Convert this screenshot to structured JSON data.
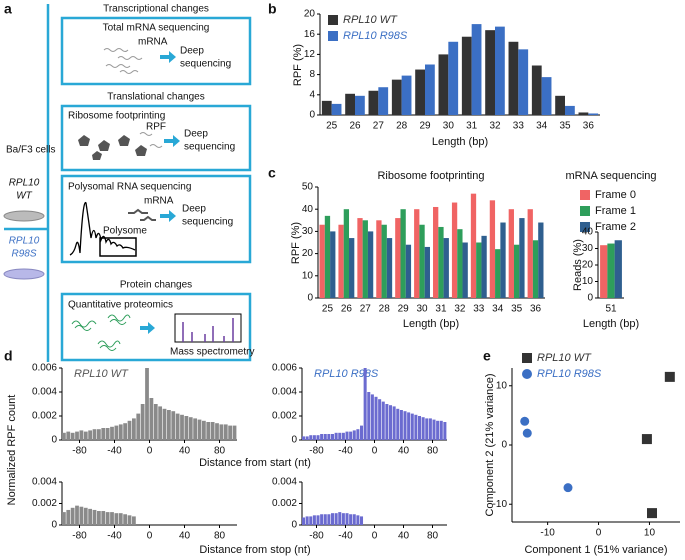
{
  "panel_labels": [
    "a",
    "b",
    "c",
    "d",
    "e"
  ],
  "panel_a": {
    "cells": "Ba/F3 cells",
    "wt": [
      "RPL10",
      "WT"
    ],
    "mut": [
      "RPL10",
      "R98S"
    ],
    "sections": [
      {
        "heading": "Transcriptional changes",
        "box": "Total mRNA sequencing",
        "labels": [
          "mRNA",
          "Deep",
          "sequencing"
        ]
      },
      {
        "heading": "Translational changes",
        "box": "Ribosome footprinting",
        "labels": [
          "RPF",
          "Deep",
          "sequencing"
        ]
      },
      {
        "box": "Polysomal RNA sequencing",
        "labels": [
          "mRNA",
          "Polysome",
          "Deep",
          "sequencing"
        ]
      },
      {
        "heading": "Protein changes",
        "box": "Quantitative proteomics",
        "labels": [
          "Mass spectrometry"
        ]
      }
    ]
  },
  "chart_data": [
    {
      "type": "bar",
      "xlabel": "Length (bp)",
      "ylabel": "RPF (%)",
      "categories": [
        "25",
        "26",
        "27",
        "28",
        "29",
        "30",
        "31",
        "32",
        "33",
        "34",
        "35",
        "36"
      ],
      "series": [
        {
          "name": "RPL10 WT",
          "color": "#333333",
          "values": [
            2.8,
            4.2,
            4.8,
            7,
            9,
            12,
            15.5,
            16.8,
            14.5,
            9.8,
            3.8,
            0.5
          ]
        },
        {
          "name": "RPL10 R98S",
          "color": "#3b6fc4",
          "values": [
            2.2,
            3.8,
            5.5,
            7.8,
            10,
            14.5,
            18,
            17.5,
            13,
            7.5,
            1.8,
            0.3
          ]
        }
      ],
      "ylim": [
        0,
        20
      ],
      "yticks": [
        0,
        4,
        8,
        12,
        16,
        20
      ],
      "legend": "upper left"
    },
    {
      "type": "bar",
      "title": "Ribosome footprinting",
      "xlabel": "Length (bp)",
      "ylabel": "RPF (%)",
      "categories": [
        "25",
        "26",
        "27",
        "28",
        "29",
        "30",
        "31",
        "32",
        "33",
        "34",
        "35",
        "36"
      ],
      "series": [
        {
          "name": "Frame 0",
          "color": "#f06464",
          "values": [
            33,
            33,
            36,
            35,
            36,
            40,
            41,
            43,
            47,
            44,
            40,
            40
          ]
        },
        {
          "name": "Frame 1",
          "color": "#2e9e5b",
          "values": [
            37,
            40,
            35,
            33,
            40,
            33,
            32,
            31,
            25,
            22,
            24,
            26
          ]
        },
        {
          "name": "Frame 2",
          "color": "#2f5f8f",
          "values": [
            30,
            27,
            30,
            27,
            24,
            23,
            27,
            25,
            28,
            34,
            36,
            34
          ]
        }
      ],
      "ylim": [
        0,
        50
      ],
      "yticks": [
        0,
        10,
        20,
        30,
        40,
        50
      ],
      "legend": "right"
    },
    {
      "type": "bar",
      "title": "mRNA sequencing",
      "xlabel": "Length (bp)",
      "ylabel": "Reads (%)",
      "categories": [
        "51"
      ],
      "series": [
        {
          "color": "#f06464",
          "values": [
            32
          ]
        },
        {
          "color": "#2e9e5b",
          "values": [
            33
          ]
        },
        {
          "color": "#2f5f8f",
          "values": [
            35
          ]
        }
      ],
      "ylim": [
        0,
        40
      ],
      "yticks": [
        0,
        10,
        20,
        30,
        40
      ]
    },
    {
      "type": "histogram",
      "annotation": "RPL10 WT",
      "annotation_color": "#555555",
      "xlabel": "Distance from start (nt)",
      "ylabel": "Normalized RPF count",
      "color": "#8a8a8a",
      "bins": [
        -100,
        -95,
        -90,
        -85,
        -80,
        -75,
        -70,
        -65,
        -60,
        -55,
        -50,
        -45,
        -40,
        -35,
        -30,
        -25,
        -20,
        -15,
        -10,
        -5,
        0,
        5,
        10,
        15,
        20,
        25,
        30,
        35,
        40,
        45,
        50,
        55,
        60,
        65,
        70,
        75,
        80,
        85,
        90,
        95,
        100
      ],
      "values": [
        0.0006,
        0.0007,
        0.0006,
        0.0007,
        0.0008,
        0.0007,
        0.0008,
        0.0009,
        0.0009,
        0.001,
        0.001,
        0.0011,
        0.0012,
        0.0013,
        0.0014,
        0.0016,
        0.0018,
        0.0022,
        0.003,
        0.006,
        0.0035,
        0.003,
        0.0028,
        0.0026,
        0.0025,
        0.0024,
        0.0022,
        0.0021,
        0.002,
        0.0019,
        0.0018,
        0.0017,
        0.0016,
        0.0015,
        0.0015,
        0.0014,
        0.0013,
        0.0013,
        0.0012,
        0.0012
      ],
      "xlim": [
        -100,
        100
      ],
      "xticks": [
        -80,
        -40,
        0,
        40,
        80
      ],
      "ylim": [
        0,
        0.006
      ],
      "yticks": [
        0,
        0.002,
        0.004,
        0.006
      ]
    },
    {
      "type": "histogram",
      "annotation": "RPL10 R98S",
      "annotation_color": "#3b6fc4",
      "color": "#6b6bd0",
      "bins": [
        -100,
        -95,
        -90,
        -85,
        -80,
        -75,
        -70,
        -65,
        -60,
        -55,
        -50,
        -45,
        -40,
        -35,
        -30,
        -25,
        -20,
        -15,
        -10,
        -5,
        0,
        5,
        10,
        15,
        20,
        25,
        30,
        35,
        40,
        45,
        50,
        55,
        60,
        65,
        70,
        75,
        80,
        85,
        90,
        95,
        100
      ],
      "values": [
        0.0003,
        0.0003,
        0.0004,
        0.0004,
        0.0004,
        0.0005,
        0.0005,
        0.0005,
        0.0005,
        0.0006,
        0.0006,
        0.0006,
        0.0007,
        0.0007,
        0.0008,
        0.0009,
        0.0012,
        0.006,
        0.004,
        0.0038,
        0.0036,
        0.0034,
        0.0032,
        0.003,
        0.0029,
        0.0028,
        0.0026,
        0.0025,
        0.0024,
        0.0023,
        0.0022,
        0.0021,
        0.002,
        0.0019,
        0.0018,
        0.0018,
        0.0017,
        0.0016,
        0.0016,
        0.0015
      ],
      "xlim": [
        -100,
        100
      ],
      "xticks": [
        -80,
        -40,
        0,
        40,
        80
      ],
      "ylim": [
        0,
        0.006
      ],
      "yticks": [
        0,
        0.002,
        0.004,
        0.006
      ]
    },
    {
      "type": "histogram",
      "xlabel": "Distance from stop (nt)",
      "color": "#8a8a8a",
      "bins": [
        -100,
        -95,
        -90,
        -85,
        -80,
        -75,
        -70,
        -65,
        -60,
        -55,
        -50,
        -45,
        -40,
        -35,
        -30,
        -25,
        -20,
        -15
      ],
      "values": [
        0.0012,
        0.0014,
        0.0016,
        0.0018,
        0.0017,
        0.0016,
        0.0015,
        0.0014,
        0.0013,
        0.0013,
        0.0012,
        0.0012,
        0.0011,
        0.0011,
        0.001,
        0.0009,
        0.0008
      ],
      "xlim": [
        -100,
        100
      ],
      "xticks": [
        -80,
        -40,
        0,
        40,
        80
      ],
      "ylim": [
        0,
        0.004
      ],
      "yticks": [
        0,
        0.002,
        0.004
      ]
    },
    {
      "type": "histogram",
      "color": "#6b6bd0",
      "bins": [
        -100,
        -95,
        -90,
        -85,
        -80,
        -75,
        -70,
        -65,
        -60,
        -55,
        -50,
        -45,
        -40,
        -35,
        -30,
        -25,
        -20,
        -15
      ],
      "values": [
        0.0007,
        0.0008,
        0.0008,
        0.0009,
        0.0009,
        0.001,
        0.001,
        0.001,
        0.0011,
        0.0011,
        0.0012,
        0.0011,
        0.0011,
        0.001,
        0.001,
        0.0009,
        0.0008
      ],
      "xlim": [
        -100,
        100
      ],
      "xticks": [
        -80,
        -40,
        0,
        40,
        80
      ],
      "ylim": [
        0,
        0.004
      ],
      "yticks": [
        0,
        0.002,
        0.004
      ]
    },
    {
      "type": "scatter",
      "xlabel": "Component 1 (51% variance)",
      "ylabel": "Component 2  (21% variance)",
      "series": [
        {
          "name": "RPL10 WT",
          "color": "#333333",
          "marker": "square",
          "x": [
            9.5,
            14,
            10.5
          ],
          "values": [
            1,
            11.5,
            -11.5
          ]
        },
        {
          "name": "RPL10 R98S",
          "color": "#3b6fc4",
          "marker": "circle",
          "x": [
            -14.5,
            -14,
            -6
          ],
          "values": [
            4,
            2,
            -7.2
          ]
        }
      ],
      "xlim": [
        -17,
        16
      ],
      "xticks": [
        -10,
        0,
        10
      ],
      "ylim": [
        -13,
        13
      ],
      "yticks": [
        -10,
        0,
        10
      ],
      "legend": "upper left"
    }
  ]
}
